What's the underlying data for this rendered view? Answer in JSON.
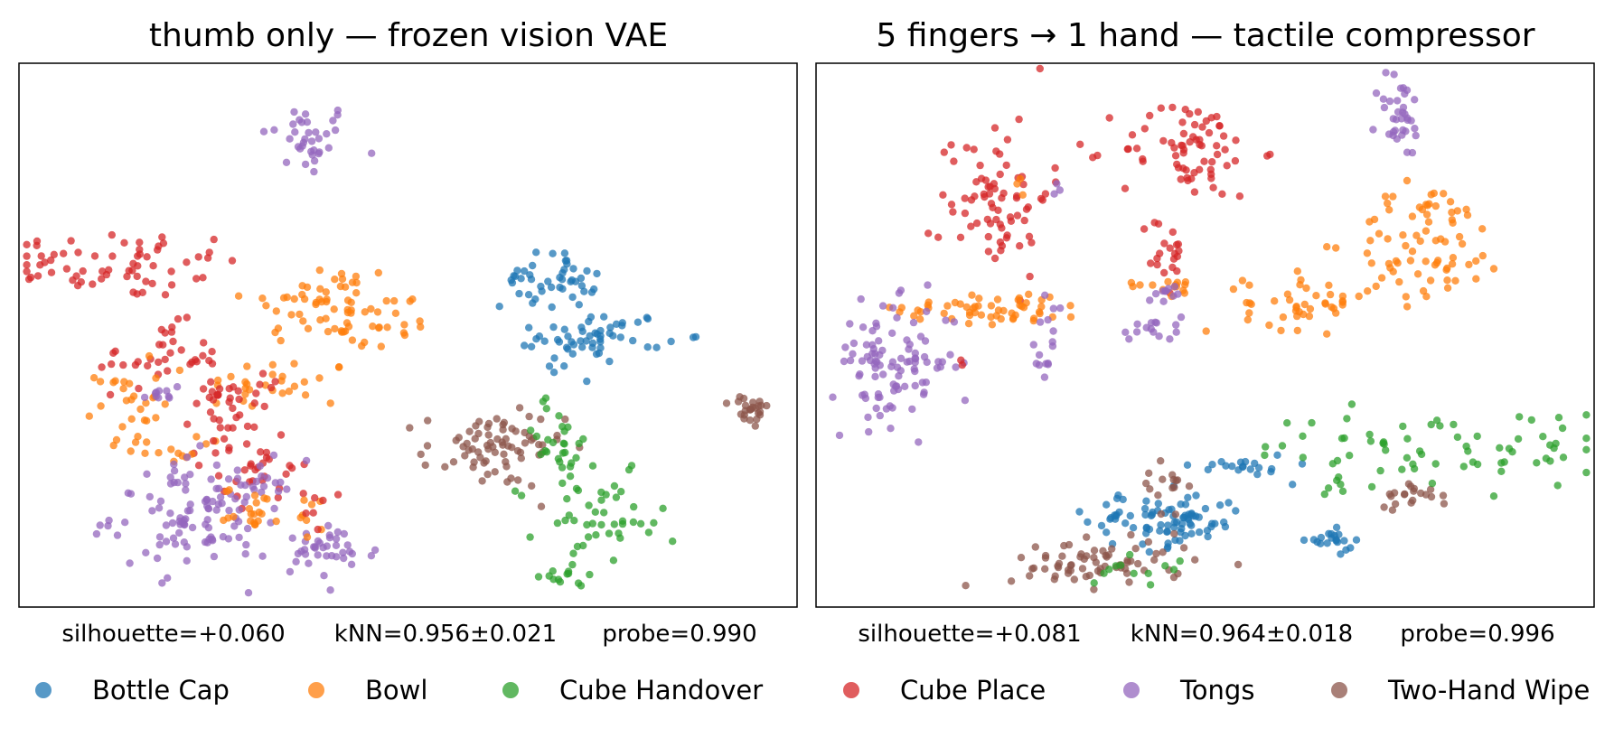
{
  "colors": {
    "Bottle Cap": "#1f77b4",
    "Bowl": "#ff7f0e",
    "Cube Handover": "#2ca02c",
    "Cube Place": "#d62728",
    "Tongs": "#9467bd",
    "Two-Hand Wipe": "#8c564b"
  },
  "legend": [
    "Bottle Cap",
    "Bowl",
    "Cube Handover",
    "Cube Place",
    "Tongs",
    "Two-Hand Wipe"
  ],
  "chart_data": [
    {
      "type": "scatter",
      "title": "thumb only — frozen vision VAE",
      "xlabel": "",
      "ylabel": "",
      "grid": false,
      "axes_ticks": "hidden",
      "metrics": {
        "silhouette": "silhouette=+0.060",
        "knn": "kNN=0.956±0.021",
        "probe": "probe=0.990"
      },
      "xlim": [
        0,
        100
      ],
      "ylim": [
        0,
        100
      ],
      "clusters": [
        {
          "class": "Tongs",
          "cx": 37,
          "cy": 86,
          "sx": 3.0,
          "sy": 3.5,
          "n": 35
        },
        {
          "class": "Cube Place",
          "cx": 13,
          "cy": 63,
          "sx": 8.0,
          "sy": 3.2,
          "n": 65
        },
        {
          "class": "Bowl",
          "cx": 39,
          "cy": 56,
          "sx": 5.0,
          "sy": 4.0,
          "n": 50
        },
        {
          "class": "Bowl",
          "cx": 46,
          "cy": 52,
          "sx": 4.0,
          "sy": 3.0,
          "n": 25
        },
        {
          "class": "Bowl",
          "cx": 33,
          "cy": 41,
          "sx": 5.0,
          "sy": 2.5,
          "n": 30
        },
        {
          "class": "Cube Place",
          "cx": 18,
          "cy": 46,
          "sx": 4.0,
          "sy": 3.0,
          "n": 35
        },
        {
          "class": "Bowl",
          "cx": 14,
          "cy": 38,
          "sx": 2.0,
          "sy": 3.5,
          "n": 25
        },
        {
          "class": "Tongs",
          "cx": 18,
          "cy": 39,
          "sx": 1.5,
          "sy": 1.5,
          "n": 10
        },
        {
          "class": "Cube Place",
          "cx": 30,
          "cy": 40,
          "sx": 2.5,
          "sy": 3.0,
          "n": 20
        },
        {
          "class": "Cube Place",
          "cx": 25,
          "cy": 33,
          "sx": 2.5,
          "sy": 3.0,
          "n": 20
        },
        {
          "class": "Cube Place",
          "cx": 32,
          "cy": 26,
          "sx": 3.0,
          "sy": 4.0,
          "n": 30
        },
        {
          "class": "Bowl",
          "cx": 17,
          "cy": 29,
          "sx": 3.0,
          "sy": 1.2,
          "n": 15
        },
        {
          "class": "Tongs",
          "cx": 24,
          "cy": 17,
          "sx": 6.0,
          "sy": 5.0,
          "n": 120
        },
        {
          "class": "Tongs",
          "cx": 40,
          "cy": 10,
          "sx": 3.0,
          "sy": 2.5,
          "n": 35
        },
        {
          "class": "Bowl",
          "cx": 30,
          "cy": 18,
          "sx": 1.8,
          "sy": 2.0,
          "n": 20
        },
        {
          "class": "Bowl",
          "cx": 38,
          "cy": 17,
          "sx": 1.0,
          "sy": 2.5,
          "n": 8
        },
        {
          "class": "Cube Place",
          "cx": 38,
          "cy": 18,
          "sx": 1.0,
          "sy": 2.0,
          "n": 6
        },
        {
          "class": "Bottle Cap",
          "cx": 68,
          "cy": 60,
          "sx": 3.0,
          "sy": 2.5,
          "n": 45
        },
        {
          "class": "Bottle Cap",
          "cx": 75,
          "cy": 50,
          "sx": 4.0,
          "sy": 2.2,
          "n": 50
        },
        {
          "class": "Bottle Cap",
          "cx": 69,
          "cy": 46,
          "sx": 1.2,
          "sy": 2.0,
          "n": 8
        },
        {
          "class": "Two-Hand Wipe",
          "cx": 61,
          "cy": 29,
          "sx": 4.5,
          "sy": 3.5,
          "n": 75
        },
        {
          "class": "Cube Handover",
          "cx": 69,
          "cy": 30,
          "sx": 2.5,
          "sy": 4.5,
          "n": 30
        },
        {
          "class": "Cube Handover",
          "cx": 75,
          "cy": 15,
          "sx": 4.0,
          "sy": 4.5,
          "n": 45
        },
        {
          "class": "Cube Handover",
          "cx": 70,
          "cy": 6,
          "sx": 1.5,
          "sy": 1.0,
          "n": 10
        },
        {
          "class": "Two-Hand Wipe",
          "cx": 94,
          "cy": 36,
          "sx": 1.2,
          "sy": 1.5,
          "n": 25
        }
      ]
    },
    {
      "type": "scatter",
      "title": "5 fingers → 1 hand — tactile compressor",
      "xlabel": "",
      "ylabel": "",
      "grid": false,
      "axes_ticks": "hidden",
      "metrics": {
        "silhouette": "silhouette=+0.081",
        "knn": "kNN=0.964±0.018",
        "probe": "probe=0.996"
      },
      "xlim": [
        0,
        100
      ],
      "ylim": [
        0,
        100
      ],
      "clusters": [
        {
          "class": "Cube Place",
          "cx": 23,
          "cy": 76,
          "sx": 3.5,
          "sy": 7.5,
          "n": 75
        },
        {
          "class": "Bowl",
          "cx": 27,
          "cy": 78,
          "sx": 0.6,
          "sy": 1.0,
          "n": 3
        },
        {
          "class": "Tongs",
          "cx": 31,
          "cy": 77,
          "sx": 0.5,
          "sy": 0.8,
          "n": 3
        },
        {
          "class": "Cube Place",
          "cx": 48,
          "cy": 84,
          "sx": 4.5,
          "sy": 4.5,
          "n": 70
        },
        {
          "class": "Cube Place",
          "cx": 45,
          "cy": 65,
          "sx": 1.2,
          "sy": 4.0,
          "n": 20
        },
        {
          "class": "Tongs",
          "cx": 75,
          "cy": 90,
          "sx": 1.5,
          "sy": 4.0,
          "n": 35
        },
        {
          "class": "Bowl",
          "cx": 79,
          "cy": 67,
          "sx": 5.0,
          "sy": 5.5,
          "n": 75
        },
        {
          "class": "Bowl",
          "cx": 23,
          "cy": 55,
          "sx": 6.0,
          "sy": 1.5,
          "n": 55
        },
        {
          "class": "Tongs",
          "cx": 30,
          "cy": 53,
          "sx": 1.0,
          "sy": 2.0,
          "n": 8
        },
        {
          "class": "Tongs",
          "cx": 29,
          "cy": 45,
          "sx": 1.0,
          "sy": 1.5,
          "n": 8
        },
        {
          "class": "Bowl",
          "cx": 45,
          "cy": 59,
          "sx": 2.5,
          "sy": 0.8,
          "n": 15
        },
        {
          "class": "Tongs",
          "cx": 45,
          "cy": 58,
          "sx": 2.5,
          "sy": 0.8,
          "n": 10
        },
        {
          "class": "Tongs",
          "cx": 43,
          "cy": 51,
          "sx": 2.0,
          "sy": 1.5,
          "n": 15
        },
        {
          "class": "Bowl",
          "cx": 63,
          "cy": 56,
          "sx": 4.0,
          "sy": 2.5,
          "n": 45
        },
        {
          "class": "Tongs",
          "cx": 10,
          "cy": 45,
          "sx": 4.0,
          "sy": 5.5,
          "n": 100
        },
        {
          "class": "Cube Place",
          "cx": 19,
          "cy": 45,
          "sx": 0.5,
          "sy": 0.8,
          "n": 2
        },
        {
          "class": "Bottle Cap",
          "cx": 45,
          "cy": 16,
          "sx": 5.0,
          "sy": 2.5,
          "n": 85
        },
        {
          "class": "Bottle Cap",
          "cx": 55,
          "cy": 26,
          "sx": 3.0,
          "sy": 1.2,
          "n": 20
        },
        {
          "class": "Bottle Cap",
          "cx": 66,
          "cy": 12,
          "sx": 1.5,
          "sy": 1.0,
          "n": 20
        },
        {
          "class": "Two-Hand Wipe",
          "cx": 37,
          "cy": 8,
          "sx": 6.0,
          "sy": 2.2,
          "n": 70
        },
        {
          "class": "Two-Hand Wipe",
          "cx": 45,
          "cy": 22,
          "sx": 1.5,
          "sy": 3.5,
          "n": 15
        },
        {
          "class": "Two-Hand Wipe",
          "cx": 77,
          "cy": 21,
          "sx": 2.5,
          "sy": 1.2,
          "n": 20
        },
        {
          "class": "Cube Handover",
          "cx": 80,
          "cy": 29,
          "sx": 12.0,
          "sy": 3.5,
          "n": 70
        },
        {
          "class": "Cube Handover",
          "cx": 41,
          "cy": 7,
          "sx": 3.0,
          "sy": 1.5,
          "n": 12
        },
        {
          "class": "Cube Handover",
          "cx": 66,
          "cy": 22,
          "sx": 0.8,
          "sy": 1.0,
          "n": 4
        }
      ]
    }
  ]
}
